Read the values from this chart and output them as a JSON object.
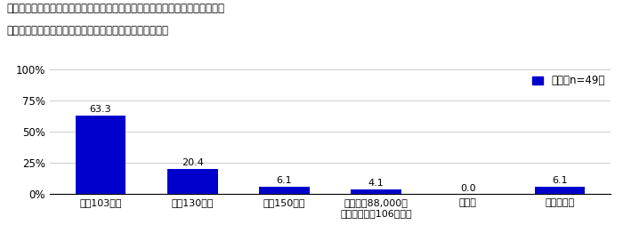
{
  "title_line1": "配偶者が労働時間の調整をするにあたって意識している収入［複数回答形式］",
  "title_line2": "対象：配偶者が労働時間を一定に抑える調整をしている人",
  "categories": [
    "年収103万円",
    "年収130万円",
    "年収150万円",
    "月額賃金88,000円\n（年収換算約106万円）",
    "その他",
    "わからない"
  ],
  "values": [
    63.3,
    20.4,
    6.1,
    4.1,
    0.0,
    6.1
  ],
  "bar_color": "#0000cc",
  "ylim": [
    0,
    100
  ],
  "yticks": [
    0,
    25,
    50,
    75,
    100
  ],
  "ytick_labels": [
    "0%",
    "25%",
    "50%",
    "75%",
    "100%"
  ],
  "legend_label": "全体［n=49］",
  "legend_color": "#0000cc",
  "value_fontsize": 8.0,
  "xlabel_fontsize": 8.0,
  "title_fontsize1": 8.5,
  "title_fontsize2": 8.5,
  "ytick_fontsize": 8.5,
  "background_color": "#ffffff",
  "grid_color": "#cccccc"
}
